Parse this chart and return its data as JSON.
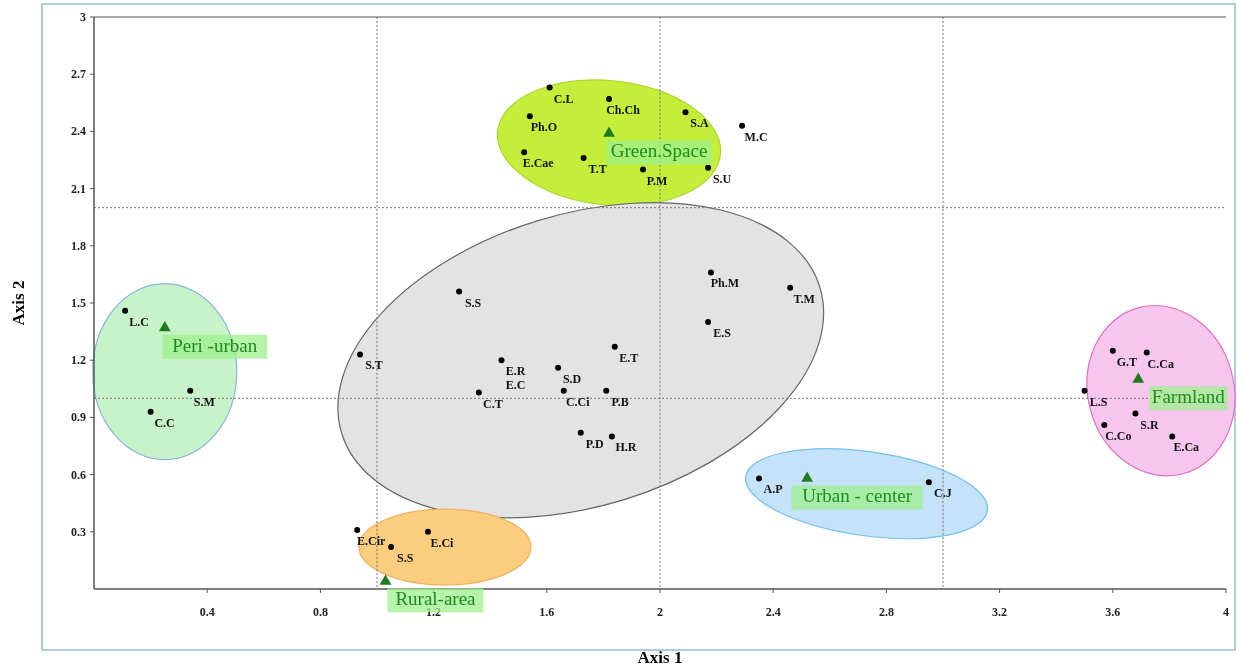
{
  "chart_data": {
    "type": "scatter",
    "xlabel": "Axis 1",
    "ylabel": "Axis 2",
    "xlim": [
      0,
      4
    ],
    "ylim": [
      0,
      3
    ],
    "xticks": [
      0.4,
      0.8,
      1.2,
      1.6,
      2,
      2.4,
      2.8,
      3.2,
      3.6,
      4
    ],
    "yticks": [
      0.3,
      0.6,
      0.9,
      1.2,
      1.5,
      1.8,
      2.1,
      2.4,
      2.7,
      3
    ],
    "grid": false,
    "ref_lines": [
      {
        "axis": "x",
        "value": 1,
        "line_style": "dotted",
        "color": "#777777"
      },
      {
        "axis": "x",
        "value": 2,
        "line_style": "dotted",
        "color": "#777777"
      },
      {
        "axis": "x",
        "value": 3,
        "line_style": "dotted",
        "color": "#777777"
      },
      {
        "axis": "y",
        "value": 1,
        "line_style": "dotted",
        "color": "#777777"
      },
      {
        "axis": "y",
        "value": 2,
        "line_style": "dotted",
        "color": "#777777"
      }
    ],
    "series": [
      {
        "color": "#000000",
        "marker": "circle",
        "x": [
          0.11,
          0.2,
          0.34,
          1.29,
          0.94,
          1.44,
          1.64,
          1.84,
          1.36,
          1.66,
          1.81,
          1.72,
          1.83,
          2.18,
          2.46,
          2.17,
          2.35,
          2.95,
          1.61,
          1.82,
          1.54,
          2.09,
          2.29,
          1.52,
          1.73,
          1.94,
          2.17,
          3.6,
          3.72,
          3.5,
          3.57,
          3.68,
          3.81,
          0.93,
          1.18,
          1.05
        ],
        "values": [
          1.46,
          0.93,
          1.04,
          1.56,
          1.23,
          1.2,
          1.16,
          1.27,
          1.03,
          1.04,
          1.04,
          0.82,
          0.8,
          1.66,
          1.58,
          1.4,
          0.58,
          0.56,
          2.63,
          2.57,
          2.48,
          2.5,
          2.43,
          2.29,
          2.26,
          2.2,
          2.21,
          1.25,
          1.24,
          1.04,
          0.86,
          0.92,
          0.8,
          0.31,
          0.3,
          0.22
        ]
      },
      {
        "name": "Green.Space",
        "color": "#1e7b1e",
        "marker": "triangle",
        "x": [
          1.82
        ],
        "values": [
          2.39
        ]
      },
      {
        "name": "Peri -urban",
        "color": "#1e7b1e",
        "marker": "triangle",
        "x": [
          0.25
        ],
        "values": [
          1.37
        ]
      },
      {
        "name": "Farmland",
        "color": "#1e7b1e",
        "marker": "triangle",
        "x": [
          3.69
        ],
        "values": [
          1.1
        ]
      },
      {
        "name": "Urban - center",
        "color": "#1e7b1e",
        "marker": "triangle",
        "x": [
          2.52
        ],
        "values": [
          0.58
        ]
      },
      {
        "name": "Rural-area",
        "color": "#1e7b1e",
        "marker": "triangle",
        "x": [
          1.03
        ],
        "values": [
          0.04
        ]
      }
    ],
    "annotations": [
      {
        "text": "L.C",
        "x": 0.11,
        "y": 1.46
      },
      {
        "text": "C.C",
        "x": 0.2,
        "y": 0.93
      },
      {
        "text": "S.M",
        "x": 0.34,
        "y": 1.04
      },
      {
        "text": "S.S",
        "x": 1.29,
        "y": 1.56
      },
      {
        "text": "S.T",
        "x": 0.94,
        "y": 1.23
      },
      {
        "text": "E.R",
        "x": 1.44,
        "y": 1.2
      },
      {
        "text": "E.C",
        "x": 1.44,
        "y": 1.2
      },
      {
        "text": "S.D",
        "x": 1.64,
        "y": 1.16
      },
      {
        "text": "E.T",
        "x": 1.84,
        "y": 1.27
      },
      {
        "text": "C.T",
        "x": 1.36,
        "y": 1.03
      },
      {
        "text": "C.Ci",
        "x": 1.66,
        "y": 1.04
      },
      {
        "text": "P.B",
        "x": 1.81,
        "y": 1.04
      },
      {
        "text": "P.D",
        "x": 1.72,
        "y": 0.82
      },
      {
        "text": "H.R",
        "x": 1.83,
        "y": 0.8
      },
      {
        "text": "Ph.M",
        "x": 2.18,
        "y": 1.66
      },
      {
        "text": "T.M",
        "x": 2.46,
        "y": 1.58
      },
      {
        "text": "E.S",
        "x": 2.17,
        "y": 1.4
      },
      {
        "text": "A.P",
        "x": 2.35,
        "y": 0.58
      },
      {
        "text": "C.J",
        "x": 2.95,
        "y": 0.56
      },
      {
        "text": "C.L",
        "x": 1.61,
        "y": 2.63
      },
      {
        "text": "Ch.Ch",
        "x": 1.82,
        "y": 2.57
      },
      {
        "text": "Ph.O",
        "x": 1.54,
        "y": 2.48
      },
      {
        "text": "S.A",
        "x": 2.09,
        "y": 2.5
      },
      {
        "text": "M.C",
        "x": 2.29,
        "y": 2.43
      },
      {
        "text": "E.Cae",
        "x": 1.52,
        "y": 2.29
      },
      {
        "text": "T.T",
        "x": 1.73,
        "y": 2.26
      },
      {
        "text": "P.M",
        "x": 1.94,
        "y": 2.2
      },
      {
        "text": "S.U",
        "x": 2.17,
        "y": 2.21
      },
      {
        "text": "G.T",
        "x": 3.6,
        "y": 1.25
      },
      {
        "text": "C.Ca",
        "x": 3.72,
        "y": 1.24
      },
      {
        "text": "L.S",
        "x": 3.5,
        "y": 1.04
      },
      {
        "text": "C.Co",
        "x": 3.57,
        "y": 0.86
      },
      {
        "text": "S.R",
        "x": 3.68,
        "y": 0.92
      },
      {
        "text": "E.Ca",
        "x": 3.81,
        "y": 0.8
      },
      {
        "text": "E.Cir",
        "x": 0.93,
        "y": 0.31
      },
      {
        "text": "E.Ci",
        "x": 1.18,
        "y": 0.3
      },
      {
        "text": "S.S",
        "x": 1.05,
        "y": 0.22
      }
    ]
  }
}
